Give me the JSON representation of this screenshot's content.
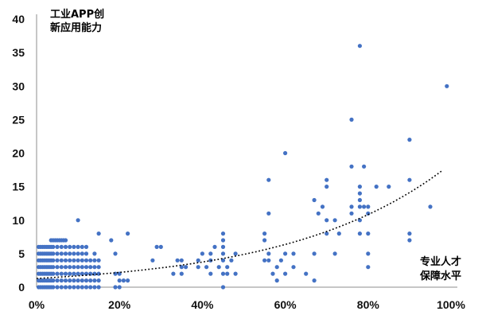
{
  "chart_data": {
    "type": "scatter",
    "title": "",
    "ylabel_lines": [
      "工业APP创",
      "新应用能力"
    ],
    "xlabel_lines": [
      "专业人才",
      "保障水平"
    ],
    "xlim": [
      0,
      100
    ],
    "ylim": [
      0,
      40
    ],
    "x_ticks": [
      0,
      20,
      40,
      60,
      80,
      100
    ],
    "x_tick_labels": [
      "0%",
      "20%",
      "40%",
      "60%",
      "80%",
      "100%"
    ],
    "y_ticks": [
      0,
      5,
      10,
      15,
      20,
      25,
      30,
      35,
      40
    ],
    "y_tick_labels": [
      "0",
      "5",
      "10",
      "15",
      "20",
      "25",
      "30",
      "35",
      "40"
    ],
    "grid": false,
    "legend": "none",
    "point_color": "#4472C4",
    "trendline": {
      "type": "exponential",
      "style": "dotted",
      "color": "#000000",
      "a": 1.3,
      "b": 0.0265,
      "x_range": [
        0,
        98
      ]
    },
    "points": [
      [
        0.5,
        0
      ],
      [
        1,
        0
      ],
      [
        1.5,
        0
      ],
      [
        2,
        0
      ],
      [
        2.5,
        0
      ],
      [
        3,
        0
      ],
      [
        3.5,
        0
      ],
      [
        4,
        0
      ],
      [
        5,
        0
      ],
      [
        6,
        0
      ],
      [
        7,
        0
      ],
      [
        8,
        0
      ],
      [
        9,
        0
      ],
      [
        10,
        0
      ],
      [
        11,
        0
      ],
      [
        12,
        0
      ],
      [
        13,
        0
      ],
      [
        14,
        0
      ],
      [
        15,
        0
      ],
      [
        19,
        0
      ],
      [
        20,
        0
      ],
      [
        45,
        0
      ],
      [
        0.5,
        1
      ],
      [
        1,
        1
      ],
      [
        1.5,
        1
      ],
      [
        2,
        1
      ],
      [
        2.5,
        1
      ],
      [
        3,
        1
      ],
      [
        3.5,
        1
      ],
      [
        4,
        1
      ],
      [
        5,
        1
      ],
      [
        6,
        1
      ],
      [
        7,
        1
      ],
      [
        8,
        1
      ],
      [
        9,
        1
      ],
      [
        10,
        1
      ],
      [
        11,
        1
      ],
      [
        12,
        1
      ],
      [
        13,
        1
      ],
      [
        14,
        1
      ],
      [
        15,
        1
      ],
      [
        20,
        1
      ],
      [
        21,
        1
      ],
      [
        22,
        1
      ],
      [
        58,
        1
      ],
      [
        67,
        1
      ],
      [
        0.5,
        2
      ],
      [
        1,
        2
      ],
      [
        1.5,
        2
      ],
      [
        2,
        2
      ],
      [
        2.5,
        2
      ],
      [
        3,
        2
      ],
      [
        3.5,
        2
      ],
      [
        4,
        2
      ],
      [
        5,
        2
      ],
      [
        6,
        2
      ],
      [
        7,
        2
      ],
      [
        8,
        2
      ],
      [
        9,
        2
      ],
      [
        10,
        2
      ],
      [
        11,
        2
      ],
      [
        12,
        2
      ],
      [
        13,
        2
      ],
      [
        14,
        2
      ],
      [
        15,
        2
      ],
      [
        19,
        2
      ],
      [
        20,
        2
      ],
      [
        33,
        2
      ],
      [
        35,
        2
      ],
      [
        42,
        2
      ],
      [
        45,
        2
      ],
      [
        46,
        2
      ],
      [
        48,
        2
      ],
      [
        57,
        2
      ],
      [
        60,
        2
      ],
      [
        65,
        2
      ],
      [
        0.5,
        3
      ],
      [
        1,
        3
      ],
      [
        1.5,
        3
      ],
      [
        2,
        3
      ],
      [
        2.5,
        3
      ],
      [
        3,
        3
      ],
      [
        3.5,
        3
      ],
      [
        4,
        3
      ],
      [
        5,
        3
      ],
      [
        6,
        3
      ],
      [
        7,
        3
      ],
      [
        8,
        3
      ],
      [
        9,
        3
      ],
      [
        10,
        3
      ],
      [
        11,
        3
      ],
      [
        12,
        3
      ],
      [
        13,
        3
      ],
      [
        14,
        3
      ],
      [
        15,
        3
      ],
      [
        35,
        3
      ],
      [
        36,
        3
      ],
      [
        39,
        3
      ],
      [
        41,
        3
      ],
      [
        44,
        3
      ],
      [
        46,
        3
      ],
      [
        58,
        3
      ],
      [
        62,
        3
      ],
      [
        80,
        3
      ],
      [
        0.5,
        4
      ],
      [
        1,
        4
      ],
      [
        1.5,
        4
      ],
      [
        2,
        4
      ],
      [
        2.5,
        4
      ],
      [
        3,
        4
      ],
      [
        3.5,
        4
      ],
      [
        4,
        4
      ],
      [
        5,
        4
      ],
      [
        6,
        4
      ],
      [
        7,
        4
      ],
      [
        8,
        4
      ],
      [
        9,
        4
      ],
      [
        10,
        4
      ],
      [
        11,
        4
      ],
      [
        12,
        4
      ],
      [
        13,
        4
      ],
      [
        14,
        4
      ],
      [
        15,
        4
      ],
      [
        28,
        4
      ],
      [
        34,
        4
      ],
      [
        35,
        4
      ],
      [
        39,
        4
      ],
      [
        42,
        4
      ],
      [
        45,
        4
      ],
      [
        47,
        4
      ],
      [
        55,
        4
      ],
      [
        56,
        4
      ],
      [
        59,
        4
      ],
      [
        0.5,
        5
      ],
      [
        1,
        5
      ],
      [
        1.5,
        5
      ],
      [
        2,
        5
      ],
      [
        2.5,
        5
      ],
      [
        3,
        5
      ],
      [
        3.5,
        5
      ],
      [
        4,
        5
      ],
      [
        5,
        5
      ],
      [
        6,
        5
      ],
      [
        7,
        5
      ],
      [
        8,
        5
      ],
      [
        9,
        5
      ],
      [
        10,
        5
      ],
      [
        11,
        5
      ],
      [
        12,
        5
      ],
      [
        14,
        5
      ],
      [
        19,
        5
      ],
      [
        40,
        5
      ],
      [
        42,
        5
      ],
      [
        45,
        5
      ],
      [
        48,
        5
      ],
      [
        56,
        5
      ],
      [
        60,
        5
      ],
      [
        62,
        5
      ],
      [
        67,
        5
      ],
      [
        72,
        5
      ],
      [
        80,
        5
      ],
      [
        0.5,
        6
      ],
      [
        1,
        6
      ],
      [
        1.5,
        6
      ],
      [
        2,
        6
      ],
      [
        2.5,
        6
      ],
      [
        3,
        6
      ],
      [
        3.5,
        6
      ],
      [
        4,
        6
      ],
      [
        5,
        6
      ],
      [
        6,
        6
      ],
      [
        7,
        6
      ],
      [
        8,
        6
      ],
      [
        9,
        6
      ],
      [
        10,
        6
      ],
      [
        11,
        6
      ],
      [
        12,
        6
      ],
      [
        29,
        6
      ],
      [
        30,
        6
      ],
      [
        43,
        6
      ],
      [
        45,
        6
      ],
      [
        3.5,
        7
      ],
      [
        4,
        7
      ],
      [
        4.5,
        7
      ],
      [
        5,
        7
      ],
      [
        5.5,
        7
      ],
      [
        6,
        7
      ],
      [
        6.5,
        7
      ],
      [
        7,
        7
      ],
      [
        18,
        7
      ],
      [
        45,
        7
      ],
      [
        55,
        7
      ],
      [
        90,
        7
      ],
      [
        15,
        8
      ],
      [
        22,
        8
      ],
      [
        45,
        8
      ],
      [
        55,
        8
      ],
      [
        70,
        8
      ],
      [
        73,
        8
      ],
      [
        78,
        8
      ],
      [
        80,
        8
      ],
      [
        90,
        8
      ],
      [
        10,
        10
      ],
      [
        70,
        10
      ],
      [
        72,
        10
      ],
      [
        78,
        10
      ],
      [
        56,
        11
      ],
      [
        68,
        11
      ],
      [
        76,
        11
      ],
      [
        80,
        11
      ],
      [
        69,
        12
      ],
      [
        76,
        12
      ],
      [
        78,
        12
      ],
      [
        79,
        12
      ],
      [
        80,
        12
      ],
      [
        95,
        12
      ],
      [
        67,
        13
      ],
      [
        78,
        13
      ],
      [
        78,
        14
      ],
      [
        70,
        15
      ],
      [
        78,
        15
      ],
      [
        82,
        15
      ],
      [
        85,
        15
      ],
      [
        56,
        16
      ],
      [
        70,
        16
      ],
      [
        90,
        16
      ],
      [
        76,
        18
      ],
      [
        79,
        18
      ],
      [
        60,
        20
      ],
      [
        90,
        22
      ],
      [
        76,
        25
      ],
      [
        99,
        30
      ],
      [
        78,
        36
      ]
    ]
  }
}
